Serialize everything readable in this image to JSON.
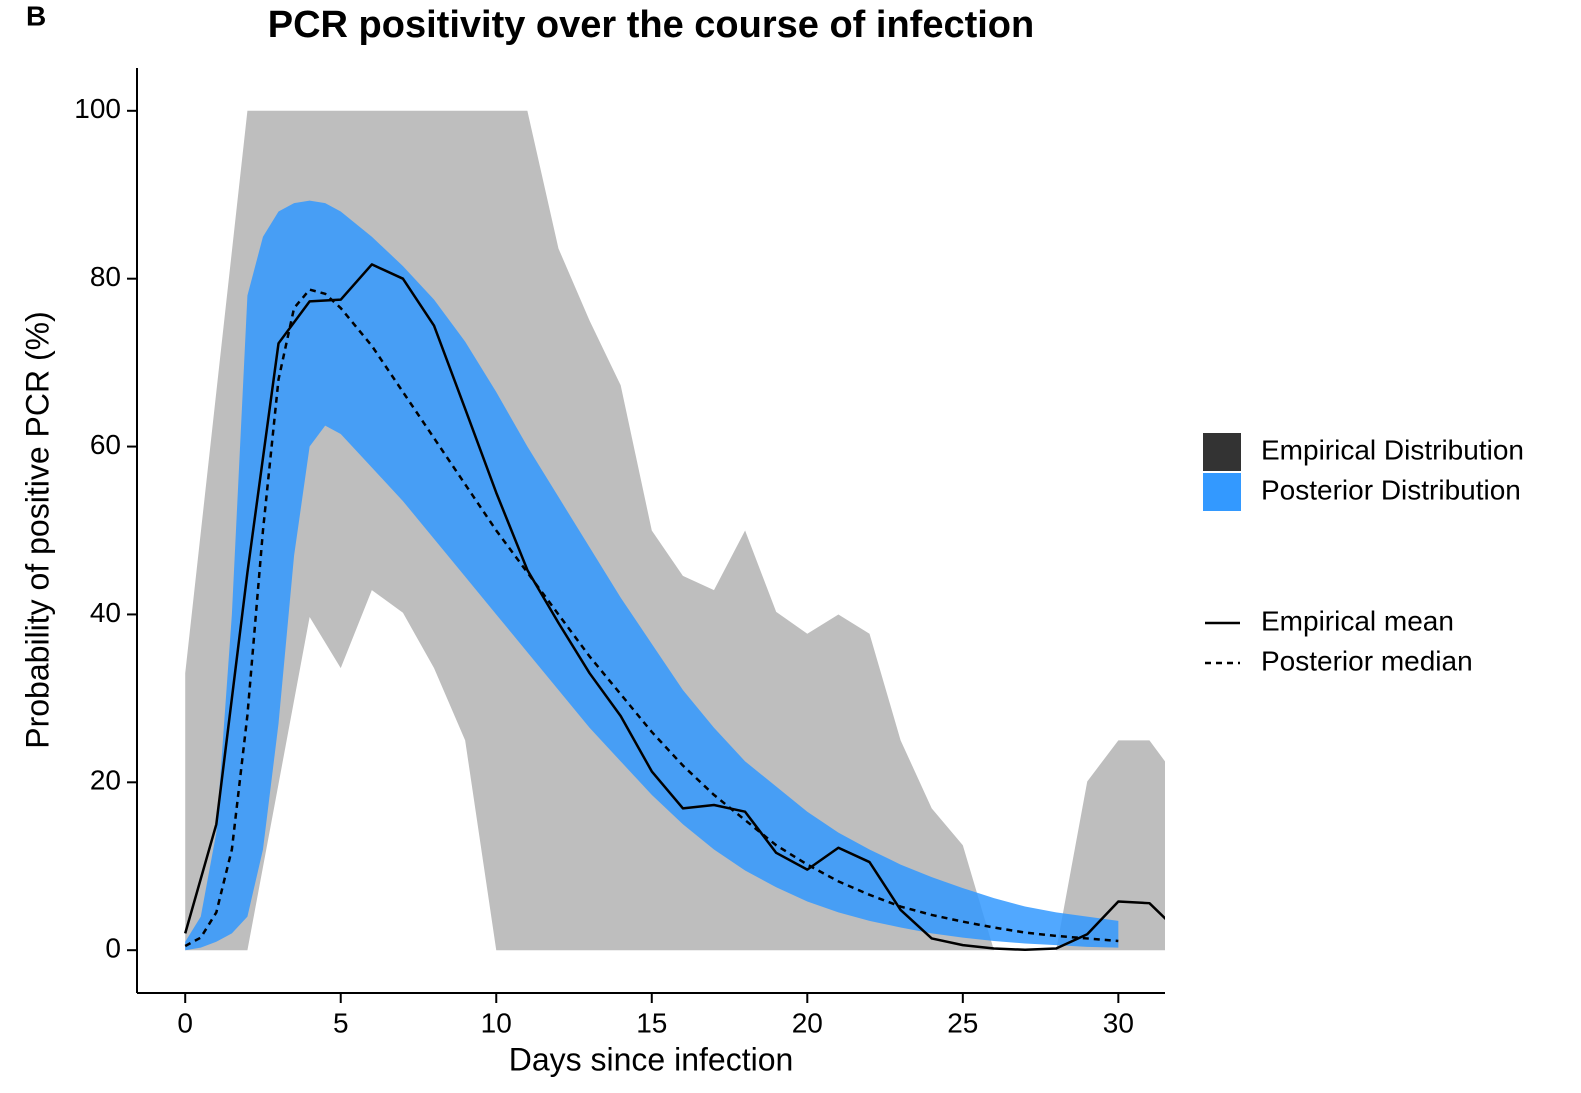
{
  "chart_data": {
    "type": "line",
    "panel_label": "B",
    "title": "PCR positivity over the course of infection",
    "x_label": "Days since infection",
    "y_label": "Probability of positive PCR (%)",
    "xlim": [
      -1.55,
      31.5
    ],
    "ylim": [
      -5.1,
      105.1
    ],
    "xticks": [
      0,
      5,
      10,
      15,
      20,
      25,
      30
    ],
    "yticks": [
      0,
      20,
      40,
      60,
      80,
      100
    ],
    "series": [
      {
        "name": "Empirical Distribution",
        "type": "band",
        "color": "#bebebe",
        "opacity": 1,
        "x": [
          0,
          1,
          2,
          3,
          4,
          5,
          6,
          7,
          8,
          9,
          10,
          11,
          12,
          13,
          14,
          15,
          16,
          17,
          18,
          19,
          20,
          21,
          22,
          23,
          24,
          25,
          26,
          27,
          28,
          29,
          30,
          31,
          32
        ],
        "lower": [
          0,
          0,
          0,
          19.8,
          39.7,
          33.6,
          42.9,
          40.2,
          33.6,
          25,
          0,
          0,
          0,
          0,
          0,
          0,
          0,
          0,
          0,
          0,
          0,
          0,
          0,
          0,
          0,
          0,
          0,
          0,
          0,
          0,
          0,
          0,
          0
        ],
        "upper": [
          33,
          66.5,
          100,
          100,
          100,
          100,
          100,
          100,
          100,
          100,
          100,
          100,
          83.6,
          75,
          67.3,
          50,
          44.6,
          42.9,
          50,
          40.3,
          37.7,
          40,
          37.7,
          25,
          16.9,
          12.5,
          0,
          0,
          0,
          20.1,
          25,
          25,
          20
        ]
      },
      {
        "name": "Posterior Distribution",
        "type": "band",
        "color": "#3399ff",
        "opacity": 0.85,
        "x": [
          0,
          0.5,
          1,
          1.5,
          2,
          2.5,
          3,
          3.5,
          4,
          4.5,
          5,
          6,
          7,
          8,
          9,
          10,
          11,
          12,
          13,
          14,
          15,
          16,
          17,
          18,
          19,
          20,
          21,
          22,
          23,
          24,
          25,
          26,
          27,
          28,
          29,
          30
        ],
        "lower": [
          0,
          0.3,
          1,
          2,
          4,
          12,
          27,
          47,
          60,
          62.5,
          61.5,
          57.5,
          53.5,
          49,
          44.5,
          40,
          35.5,
          31,
          26.5,
          22.5,
          18.5,
          15,
          12,
          9.5,
          7.5,
          5.8,
          4.5,
          3.5,
          2.7,
          2,
          1.5,
          1.1,
          0.8,
          0.6,
          0.4,
          0.3
        ],
        "upper": [
          1,
          4,
          14,
          40,
          78,
          85,
          88,
          89,
          89.3,
          89,
          88,
          85,
          81.5,
          77.5,
          72.5,
          66.5,
          60,
          54,
          48,
          42,
          36.5,
          31,
          26.5,
          22.5,
          19.5,
          16.5,
          14,
          12,
          10.2,
          8.7,
          7.4,
          6.2,
          5.2,
          4.5,
          4,
          3.5
        ]
      },
      {
        "name": "Empirical mean",
        "type": "line",
        "color": "#000000",
        "linestyle": "solid",
        "x": [
          0,
          1,
          2,
          3,
          4,
          5,
          6,
          7,
          8,
          9,
          10,
          11,
          12,
          13,
          14,
          15,
          16,
          17,
          18,
          19,
          20,
          21,
          22,
          23,
          24,
          25,
          26,
          27,
          28,
          29,
          30,
          31,
          32
        ],
        "values": [
          2,
          15,
          45,
          72.3,
          77.3,
          77.5,
          81.7,
          80,
          74.4,
          64.5,
          54.5,
          45.3,
          39,
          33,
          27.9,
          21.3,
          16.9,
          17.3,
          16.5,
          11.6,
          9.6,
          12.2,
          10.5,
          4.8,
          1.4,
          0.6,
          0.2,
          0.05,
          0.2,
          1.9,
          5.8,
          5.6,
          2
        ]
      },
      {
        "name": "Posterior median",
        "type": "line",
        "color": "#000000",
        "linestyle": "dashed",
        "x": [
          0,
          0.5,
          1,
          1.5,
          2,
          2.5,
          3,
          3.5,
          4,
          4.5,
          5,
          6,
          7,
          8,
          9,
          10,
          11,
          12,
          13,
          14,
          15,
          16,
          17,
          18,
          19,
          20,
          21,
          22,
          23,
          24,
          25,
          26,
          27,
          28,
          29,
          30
        ],
        "values": [
          0.5,
          1.5,
          4.5,
          12,
          28,
          50,
          68,
          76.5,
          78.7,
          78.2,
          76.5,
          72,
          66.5,
          61,
          55.5,
          50,
          45,
          40,
          35,
          30.5,
          26,
          22,
          18.5,
          15.5,
          12.5,
          10.2,
          8.2,
          6.6,
          5.2,
          4.2,
          3.4,
          2.7,
          2.1,
          1.7,
          1.4,
          1.1
        ]
      }
    ]
  }
}
